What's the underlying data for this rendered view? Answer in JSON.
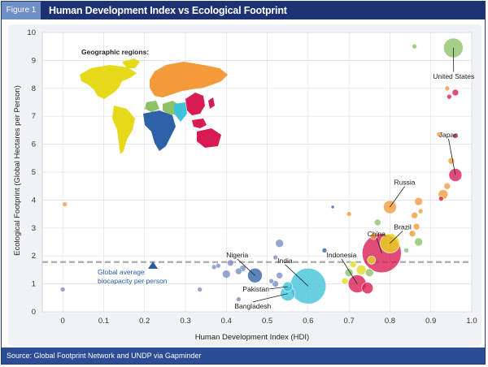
{
  "figure": {
    "label": "Figure 1",
    "title": "Human Development Index vs Ecological Footprint",
    "source": "Source: Global Footprint Network and UNDP via Gapminder"
  },
  "map_legend": {
    "title": "Geographic regions:",
    "regions": [
      {
        "color": "#e6d91a"
      },
      {
        "color": "#f39a3a"
      },
      {
        "color": "#2e62a8"
      },
      {
        "color": "#8cc265"
      },
      {
        "color": "#3ec3d8"
      },
      {
        "color": "#d81b52"
      }
    ]
  },
  "chart_data": {
    "type": "scatter",
    "title": "Human Development Index vs Ecological Footprint",
    "xlabel": "Human Development Index (HDI)",
    "ylabel": "Ecological Footprint (Global Hectares per Person)",
    "xlim": [
      -0.05,
      1.0
    ],
    "ylim": [
      0,
      10
    ],
    "x_ticks": [
      "0",
      "0.1",
      "0.2",
      "0.3",
      "0.4",
      "0.5",
      "0.6",
      "0.7",
      "0.8",
      "0.9",
      "1.0"
    ],
    "y_ticks": [
      "0",
      "1",
      "2",
      "3",
      "4",
      "5",
      "6",
      "7",
      "8",
      "9",
      "10"
    ],
    "grid": true,
    "reference_line": {
      "y": 1.78,
      "label_line1": "Global average",
      "label_line2": "biocapacity per person",
      "color": "#aaaaaa"
    },
    "points": [
      {
        "x": 0.955,
        "y": 9.45,
        "size": 12,
        "color": "#8cc265"
      },
      {
        "x": 0.86,
        "y": 9.5,
        "size": 3,
        "color": "#8cc265"
      },
      {
        "x": 0.96,
        "y": 7.85,
        "size": 4,
        "color": "#d81b52"
      },
      {
        "x": 0.945,
        "y": 7.7,
        "size": 3,
        "color": "#d81b52"
      },
      {
        "x": 0.94,
        "y": 8.0,
        "size": 3,
        "color": "#f39a3a"
      },
      {
        "x": 0.92,
        "y": 6.35,
        "size": 3,
        "color": "#f39a3a"
      },
      {
        "x": 0.96,
        "y": 6.3,
        "size": 3,
        "color": "#d81b52"
      },
      {
        "x": 0.96,
        "y": 4.9,
        "size": 8,
        "color": "#d81b52"
      },
      {
        "x": 0.95,
        "y": 5.4,
        "size": 4,
        "color": "#f39a3a"
      },
      {
        "x": 0.94,
        "y": 4.5,
        "size": 4,
        "color": "#f39a3a"
      },
      {
        "x": 0.93,
        "y": 4.2,
        "size": 6,
        "color": "#f39a3a"
      },
      {
        "x": 0.925,
        "y": 4.05,
        "size": 3,
        "color": "#d81b52"
      },
      {
        "x": 0.87,
        "y": 3.95,
        "size": 5,
        "color": "#f39a3a"
      },
      {
        "x": 0.875,
        "y": 3.6,
        "size": 3,
        "color": "#f39a3a"
      },
      {
        "x": 0.86,
        "y": 3.45,
        "size": 4,
        "color": "#f39a3a"
      },
      {
        "x": 0.865,
        "y": 3.05,
        "size": 4,
        "color": "#f39a3a"
      },
      {
        "x": 0.87,
        "y": 2.5,
        "size": 5,
        "color": "#8cc265"
      },
      {
        "x": 0.855,
        "y": 2.8,
        "size": 4,
        "color": "#f39a3a"
      },
      {
        "x": 0.84,
        "y": 2.2,
        "size": 3,
        "color": "#8cc265"
      },
      {
        "x": 0.8,
        "y": 3.75,
        "size": 8,
        "color": "#f39a3a"
      },
      {
        "x": 0.8,
        "y": 2.45,
        "size": 12,
        "color": "#e6d91a"
      },
      {
        "x": 0.78,
        "y": 2.1,
        "size": 24,
        "color": "#d81b52"
      },
      {
        "x": 0.77,
        "y": 3.2,
        "size": 4,
        "color": "#8cc265"
      },
      {
        "x": 0.76,
        "y": 2.7,
        "size": 4,
        "color": "#f39a3a"
      },
      {
        "x": 0.755,
        "y": 1.85,
        "size": 5,
        "color": "#e6d91a"
      },
      {
        "x": 0.75,
        "y": 1.4,
        "size": 5,
        "color": "#8cc265"
      },
      {
        "x": 0.745,
        "y": 0.85,
        "size": 7,
        "color": "#d81b52"
      },
      {
        "x": 0.72,
        "y": 1.0,
        "size": 11,
        "color": "#d81b52"
      },
      {
        "x": 0.73,
        "y": 1.5,
        "size": 6,
        "color": "#e6d91a"
      },
      {
        "x": 0.71,
        "y": 1.7,
        "size": 4,
        "color": "#e6d91a"
      },
      {
        "x": 0.7,
        "y": 1.4,
        "size": 5,
        "color": "#8cc265"
      },
      {
        "x": 0.69,
        "y": 1.1,
        "size": 4,
        "color": "#e6d91a"
      },
      {
        "x": 0.7,
        "y": 3.5,
        "size": 3,
        "color": "#f39a3a"
      },
      {
        "x": 0.66,
        "y": 3.75,
        "size": 2,
        "color": "#2e62a8"
      },
      {
        "x": 0.64,
        "y": 2.2,
        "size": 3,
        "color": "#2e62a8"
      },
      {
        "x": 0.6,
        "y": 0.92,
        "size": 22,
        "color": "#3ec3d8"
      },
      {
        "x": 0.55,
        "y": 0.9,
        "size": 6,
        "color": "#3ec3d8"
      },
      {
        "x": 0.55,
        "y": 0.65,
        "size": 9,
        "color": "#3ec3d8"
      },
      {
        "x": 0.52,
        "y": 1.0,
        "size": 4,
        "color": "#7b8cc4"
      },
      {
        "x": 0.53,
        "y": 1.3,
        "size": 4,
        "color": "#7b8cc4"
      },
      {
        "x": 0.51,
        "y": 1.1,
        "size": 3,
        "color": "#7b8cc4"
      },
      {
        "x": 0.53,
        "y": 2.45,
        "size": 5,
        "color": "#7b8cc4"
      },
      {
        "x": 0.52,
        "y": 1.95,
        "size": 3,
        "color": "#7b8cc4"
      },
      {
        "x": 0.47,
        "y": 1.3,
        "size": 9,
        "color": "#2e62a8"
      },
      {
        "x": 0.44,
        "y": 1.55,
        "size": 4,
        "color": "#7b8cc4"
      },
      {
        "x": 0.43,
        "y": 1.45,
        "size": 4,
        "color": "#7b8cc4"
      },
      {
        "x": 0.41,
        "y": 1.75,
        "size": 4,
        "color": "#7b8cc4"
      },
      {
        "x": 0.4,
        "y": 1.35,
        "size": 5,
        "color": "#7b8cc4"
      },
      {
        "x": 0.38,
        "y": 1.65,
        "size": 3,
        "color": "#7b8cc4"
      },
      {
        "x": 0.37,
        "y": 1.6,
        "size": 3,
        "color": "#7b8cc4"
      },
      {
        "x": 0.43,
        "y": 0.45,
        "size": 3,
        "color": "#7b8cc4"
      },
      {
        "x": 0.335,
        "y": 0.8,
        "size": 3,
        "color": "#7b8cc4"
      },
      {
        "x": 0.0,
        "y": 0.8,
        "size": 3,
        "color": "#7b8cc4"
      },
      {
        "x": 0.005,
        "y": 3.85,
        "size": 3,
        "color": "#f39a3a"
      }
    ],
    "annotations": [
      {
        "label": "United States",
        "x": 0.955,
        "y": 9.45,
        "lx": 0.905,
        "ly": 8.35
      },
      {
        "label": "Japan",
        "x": 0.96,
        "y": 4.9,
        "lx": 0.92,
        "ly": 6.25
      },
      {
        "label": "Russia",
        "x": 0.8,
        "y": 3.75,
        "lx": 0.81,
        "ly": 4.55
      },
      {
        "label": "Brazil",
        "x": 0.8,
        "y": 2.45,
        "lx": 0.81,
        "ly": 2.95
      },
      {
        "label": "China",
        "x": 0.78,
        "y": 2.1,
        "lx": 0.745,
        "ly": 2.7
      },
      {
        "label": "Indonesia",
        "x": 0.72,
        "y": 1.0,
        "lx": 0.645,
        "ly": 1.95
      },
      {
        "label": "India",
        "x": 0.6,
        "y": 0.92,
        "lx": 0.525,
        "ly": 1.75
      },
      {
        "label": "Nigeria",
        "x": 0.47,
        "y": 1.3,
        "lx": 0.4,
        "ly": 1.95
      },
      {
        "label": "Pakistan",
        "x": 0.55,
        "y": 0.9,
        "lx": 0.44,
        "ly": 0.73
      },
      {
        "label": "Bangladesh",
        "x": 0.55,
        "y": 0.65,
        "lx": 0.42,
        "ly": 0.12
      }
    ]
  }
}
